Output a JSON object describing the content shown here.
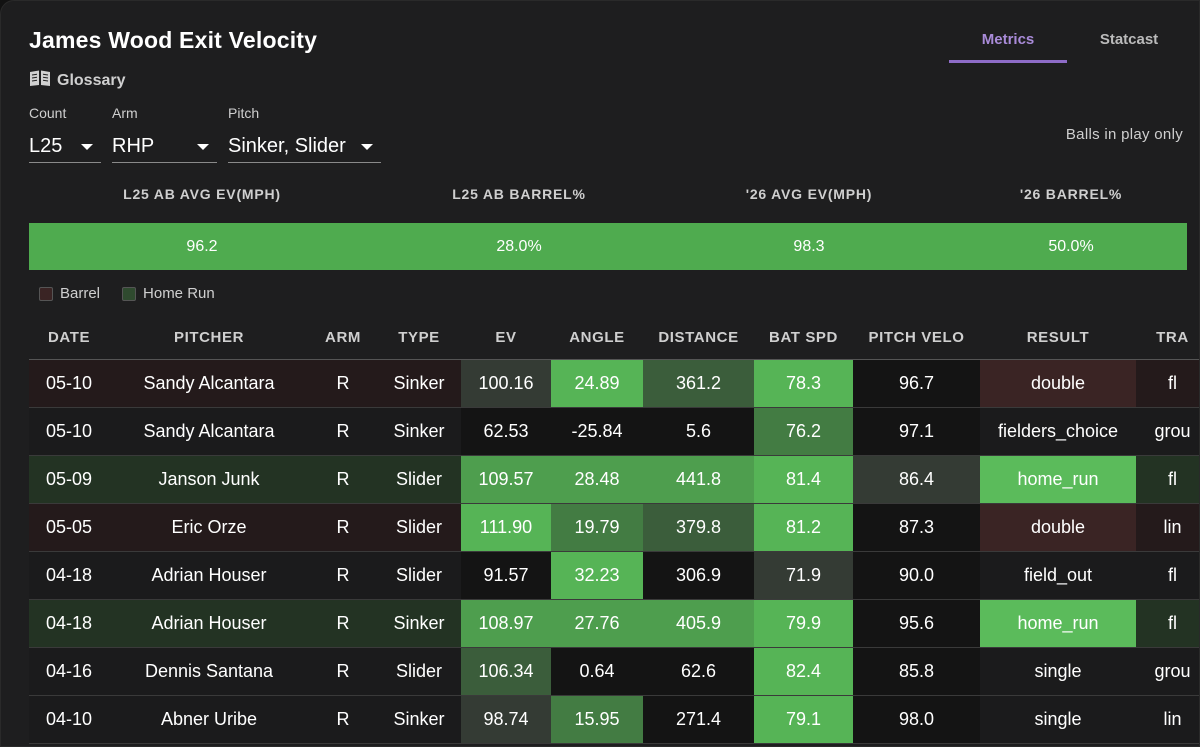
{
  "title": "James Wood Exit Velocity",
  "glossary_label": "Glossary",
  "tabs": [
    {
      "label": "Metrics",
      "active": true
    },
    {
      "label": "Statcast",
      "active": false
    }
  ],
  "filters": {
    "count": {
      "label": "Count",
      "value": "L25"
    },
    "arm": {
      "label": "Arm",
      "value": "RHP"
    },
    "pitch": {
      "label": "Pitch",
      "value": "Sinker, Slider"
    }
  },
  "balls_in_play_note": "Balls in play only",
  "summary": {
    "headers": [
      "L25 AB AVG EV(MPH)",
      "L25 AB BARREL%",
      "'26 AVG EV(MPH)",
      "'26 BARREL%"
    ],
    "values": [
      "96.2",
      "28.0%",
      "98.3",
      "50.0%"
    ]
  },
  "legend": {
    "barrel": {
      "label": "Barrel",
      "color": "#3a2424"
    },
    "home_run": {
      "label": "Home Run",
      "color": "#2f4a2f"
    }
  },
  "table": {
    "columns": [
      "DATE",
      "PITCHER",
      "ARM",
      "TYPE",
      "EV",
      "ANGLE",
      "DISTANCE",
      "BAT SPD",
      "PITCH VELO",
      "RESULT",
      "TRA"
    ],
    "rows": [
      {
        "kind": "barrel",
        "cells": [
          "05-10",
          "Sandy Alcantara",
          "R",
          "Sinker",
          "100.16",
          "24.89",
          "361.2",
          "78.3",
          "96.7",
          "double",
          "fl"
        ],
        "shade": [
          "",
          "",
          "",
          "",
          "c-dark",
          "c-g4",
          "c-g1",
          "c-g4",
          "c-blk",
          "c-red",
          ""
        ]
      },
      {
        "kind": "plain",
        "cells": [
          "05-10",
          "Sandy Alcantara",
          "R",
          "Sinker",
          "62.53",
          "-25.84",
          "5.6",
          "76.2",
          "97.1",
          "fielders_choice",
          "grou"
        ],
        "shade": [
          "",
          "",
          "",
          "",
          "c-blk",
          "c-blk",
          "c-blk",
          "c-g2",
          "c-blk",
          "",
          ""
        ]
      },
      {
        "kind": "hr",
        "cells": [
          "05-09",
          "Janson Junk",
          "R",
          "Slider",
          "109.57",
          "28.48",
          "441.8",
          "81.4",
          "86.4",
          "home_run",
          "fl"
        ],
        "shade": [
          "",
          "",
          "",
          "",
          "c-g3",
          "c-g3",
          "c-g3",
          "c-g4",
          "c-dark",
          "c-hr",
          ""
        ]
      },
      {
        "kind": "barrel",
        "cells": [
          "05-05",
          "Eric Orze",
          "R",
          "Slider",
          "111.90",
          "19.79",
          "379.8",
          "81.2",
          "87.3",
          "double",
          "lin"
        ],
        "shade": [
          "",
          "",
          "",
          "",
          "c-g4",
          "c-g2",
          "c-g1",
          "c-g4",
          "c-blk",
          "c-red",
          ""
        ]
      },
      {
        "kind": "plain",
        "cells": [
          "04-18",
          "Adrian Houser",
          "R",
          "Slider",
          "91.57",
          "32.23",
          "306.9",
          "71.9",
          "90.0",
          "field_out",
          "fl"
        ],
        "shade": [
          "",
          "",
          "",
          "",
          "c-blk",
          "c-g4",
          "c-blk",
          "c-dark",
          "c-blk",
          "",
          ""
        ]
      },
      {
        "kind": "hr",
        "cells": [
          "04-18",
          "Adrian Houser",
          "R",
          "Sinker",
          "108.97",
          "27.76",
          "405.9",
          "79.9",
          "95.6",
          "home_run",
          "fl"
        ],
        "shade": [
          "",
          "",
          "",
          "",
          "c-g3",
          "c-g3",
          "c-g3",
          "c-g4",
          "c-blk",
          "c-hr",
          ""
        ]
      },
      {
        "kind": "plain",
        "cells": [
          "04-16",
          "Dennis Santana",
          "R",
          "Slider",
          "106.34",
          "0.64",
          "62.6",
          "82.4",
          "85.8",
          "single",
          "grou"
        ],
        "shade": [
          "",
          "",
          "",
          "",
          "c-g1",
          "c-blk",
          "c-blk",
          "c-g4",
          "c-blk",
          "",
          ""
        ]
      },
      {
        "kind": "plain",
        "cells": [
          "04-10",
          "Abner Uribe",
          "R",
          "Sinker",
          "98.74",
          "15.95",
          "271.4",
          "79.1",
          "98.0",
          "single",
          "lin"
        ],
        "shade": [
          "",
          "",
          "",
          "",
          "c-dark",
          "c-g2",
          "c-blk",
          "c-g4",
          "c-blk",
          "",
          ""
        ]
      }
    ]
  }
}
